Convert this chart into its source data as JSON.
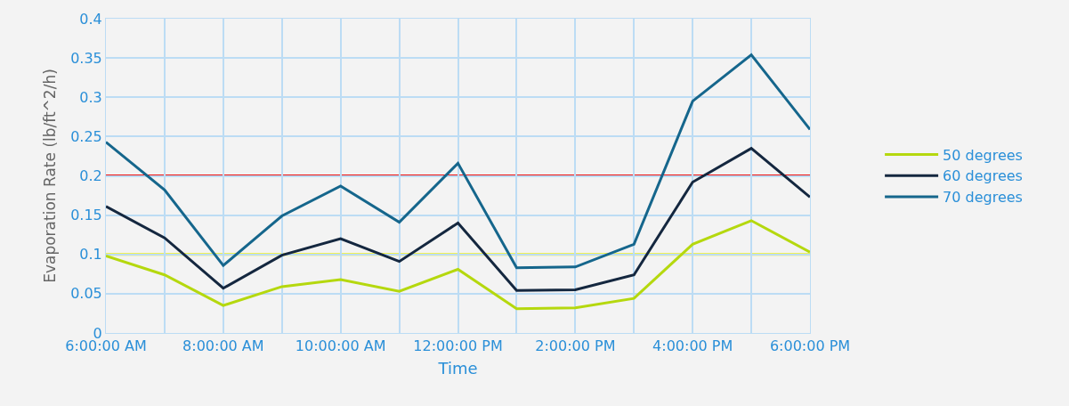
{
  "chart_data": {
    "type": "line",
    "xlabel": "Time",
    "ylabel": "Evaporation Rate (lb/ft^2/h)",
    "x": [
      6,
      7,
      8,
      9,
      10,
      11,
      12,
      13,
      14,
      15,
      16,
      17,
      18
    ],
    "xlim": [
      6,
      18
    ],
    "xticks": [
      {
        "value": 6,
        "label": "6:00:00 AM"
      },
      {
        "value": 7,
        "label": null
      },
      {
        "value": 8,
        "label": "8:00:00 AM"
      },
      {
        "value": 9,
        "label": null
      },
      {
        "value": 10,
        "label": "10:00:00 AM"
      },
      {
        "value": 11,
        "label": null
      },
      {
        "value": 12,
        "label": "12:00:00 PM"
      },
      {
        "value": 13,
        "label": null
      },
      {
        "value": 14,
        "label": "2:00:00 PM"
      },
      {
        "value": 15,
        "label": null
      },
      {
        "value": 16,
        "label": "4:00:00 PM"
      },
      {
        "value": 17,
        "label": null
      },
      {
        "value": 18,
        "label": "6:00:00 PM"
      }
    ],
    "ylim": [
      0,
      0.4
    ],
    "yticks": [
      0,
      0.05,
      0.1,
      0.15,
      0.2,
      0.25,
      0.3,
      0.35,
      0.4
    ],
    "grid": true,
    "legend": "right",
    "marker": "none",
    "line_style": "solid",
    "series": [
      {
        "name": "50 degrees",
        "color": "#b5d80e",
        "values": [
          0.098,
          0.074,
          0.035,
          0.059,
          0.068,
          0.053,
          0.081,
          0.031,
          0.032,
          0.044,
          0.113,
          0.143,
          0.103
        ]
      },
      {
        "name": "60 degrees",
        "color": "#14273f",
        "values": [
          0.161,
          0.121,
          0.057,
          0.099,
          0.12,
          0.091,
          0.14,
          0.054,
          0.055,
          0.074,
          0.192,
          0.235,
          0.173
        ]
      },
      {
        "name": "70 degrees",
        "color": "#15668c",
        "values": [
          0.243,
          0.182,
          0.086,
          0.149,
          0.187,
          0.141,
          0.216,
          0.083,
          0.084,
          0.113,
          0.295,
          0.354,
          0.259
        ]
      }
    ],
    "ref_lines": [
      {
        "axis": "y",
        "value": 0.2,
        "label": null,
        "color": "#ee1111",
        "line_style": "solid"
      },
      {
        "axis": "y",
        "value": 0.1,
        "label": null,
        "color": "#f2f21e",
        "line_style": "solid"
      }
    ]
  }
}
